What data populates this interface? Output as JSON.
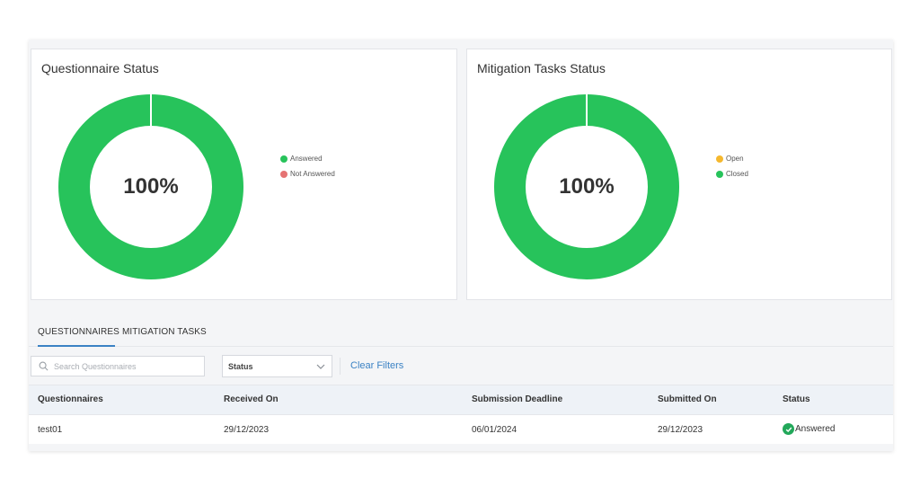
{
  "colors": {
    "green": "#27c35b",
    "red": "#e57373",
    "amber": "#f5b82e",
    "accent": "#3b82c4"
  },
  "questionnaire_card": {
    "title": "Questionnaire Status",
    "center_label": "100%",
    "legend": [
      {
        "label": "Answered",
        "color": "#27c35b"
      },
      {
        "label": "Not Answered",
        "color": "#e57373"
      }
    ]
  },
  "mitigation_card": {
    "title": "Mitigation Tasks Status",
    "center_label": "100%",
    "legend": [
      {
        "label": "Open",
        "color": "#f5b82e"
      },
      {
        "label": "Closed",
        "color": "#27c35b"
      }
    ]
  },
  "chart_data": [
    {
      "type": "pie",
      "title": "Questionnaire Status",
      "categories": [
        "Answered",
        "Not Answered"
      ],
      "values": [
        100,
        0
      ]
    },
    {
      "type": "pie",
      "title": "Mitigation Tasks Status",
      "categories": [
        "Open",
        "Closed"
      ],
      "values": [
        0,
        100
      ]
    }
  ],
  "tabs": [
    {
      "label": "QUESTIONNAIRES",
      "active": true
    },
    {
      "label": "MITIGATION TASKS",
      "active": false
    }
  ],
  "filters": {
    "search_placeholder": "Search Questionnaires",
    "search_value": "",
    "status_select": "Status",
    "clear_label": "Clear Filters"
  },
  "table": {
    "headers": [
      "Questionnaires",
      "Received On",
      "Submission Deadline",
      "Submitted On",
      "Status"
    ],
    "rows": [
      {
        "name": "test01",
        "received": "29/12/2023",
        "deadline": "06/01/2024",
        "submitted": "29/12/2023",
        "status": "Answered"
      }
    ]
  }
}
